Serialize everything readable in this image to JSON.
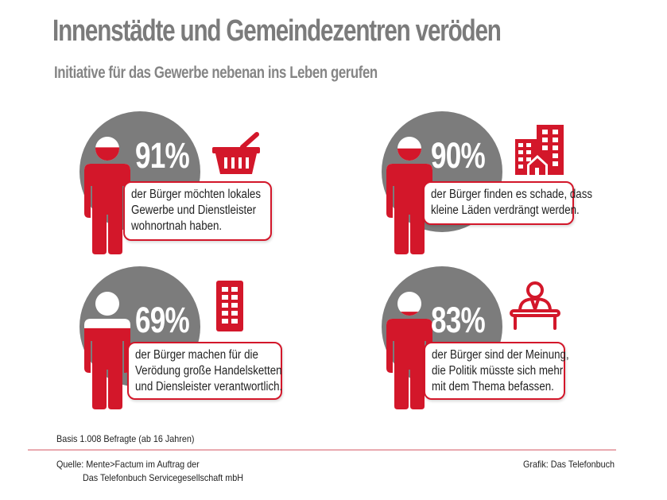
{
  "header": {
    "title": "Innenstädte und Gemeindezentren veröden",
    "subtitle": "Initiative für das Gewerbe nebenan ins Leben gerufen"
  },
  "colors": {
    "accent_red": "#d3172a",
    "circle_gray": "#7c7c7c",
    "title_gray": "#7b7b7b",
    "rule_pink": "#e9aab0"
  },
  "stats": [
    {
      "percent_label": "91%",
      "value": 91,
      "icon": "shopping-basket-icon",
      "lines": [
        "der Bürger möchten lokales",
        "Gewerbe und Dienstleister",
        "wohnortnah haben."
      ]
    },
    {
      "percent_label": "90%",
      "value": 90,
      "icon": "buildings-with-house-icon",
      "lines": [
        "der Bürger finden es schade, dass",
        "kleine Läden verdrängt werden."
      ]
    },
    {
      "percent_label": "69%",
      "value": 69,
      "icon": "office-building-icon",
      "lines": [
        "der Bürger machen für die",
        "Verödung große Handelsketten",
        "und Diensleister verantwortlich."
      ]
    },
    {
      "percent_label": "83%",
      "value": 83,
      "icon": "politician-at-desk-icon",
      "lines": [
        "der Bürger sind der Meinung,",
        "die Politik müsste sich mehr",
        "mit dem Thema befassen."
      ]
    }
  ],
  "footer": {
    "basis": "Basis 1.008 Befragte (ab 16 Jahren)",
    "source_line1": "Quelle: Mente>Factum im Auftrag der",
    "source_line2": "Das Telefonbuch Servicegesellschaft mbH",
    "credit": "Grafik: Das Telefonbuch"
  }
}
